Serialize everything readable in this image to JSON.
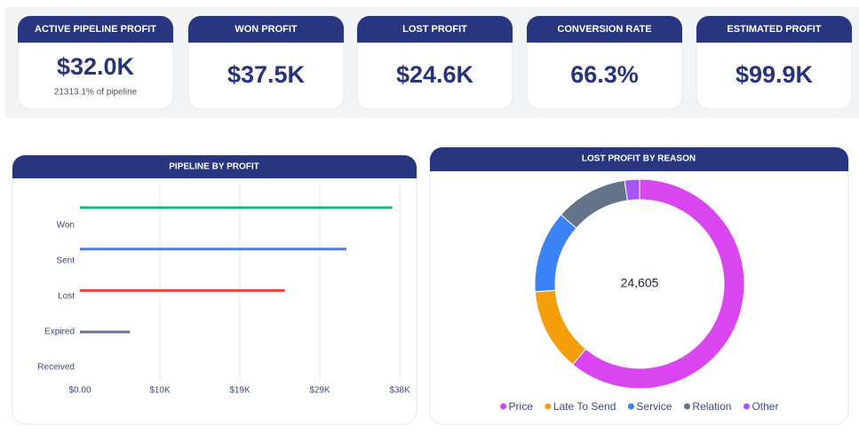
{
  "kpis": [
    {
      "title": "ACTIVE PIPELINE PROFIT",
      "value": "$32.0K",
      "note": "21313.1% of pipeline"
    },
    {
      "title": "WON PROFIT",
      "value": "$37.5K"
    },
    {
      "title": "LOST PROFIT",
      "value": "$24.6K"
    },
    {
      "title": "CONVERSION RATE",
      "value": "66.3%"
    },
    {
      "title": "ESTIMATED PROFIT",
      "value": "$99.9K"
    }
  ],
  "chart_data": [
    {
      "type": "bar",
      "orientation": "horizontal",
      "title": "PIPELINE BY PROFIT",
      "categories": [
        "Won",
        "Sent",
        "Lost",
        "Expired",
        "Received"
      ],
      "values": [
        37500,
        32000,
        24605,
        6000,
        0
      ],
      "colors": [
        "#10b981",
        "#3b82f6",
        "#ef4444",
        "#64748b",
        null
      ],
      "xlim": [
        0,
        38400
      ],
      "xticks": [
        {
          "value": 0,
          "label": "$0.00"
        },
        {
          "value": 9600,
          "label": "$10K"
        },
        {
          "value": 19200,
          "label": "$19K"
        },
        {
          "value": 28800,
          "label": "$29K"
        },
        {
          "value": 38400,
          "label": "$38K"
        }
      ],
      "grid": true
    },
    {
      "type": "pie",
      "donut": true,
      "title": "LOST PROFIT BY REASON",
      "center_label": "24,605",
      "categories": [
        "Price",
        "Late To Send",
        "Service",
        "Relation",
        "Other"
      ],
      "values": [
        15010,
        3150,
        3125,
        2755,
        565
      ],
      "colors": [
        "#d946ef",
        "#f59e0b",
        "#3b82f6",
        "#64748b",
        "#a855f7"
      ],
      "legend": "bottom"
    }
  ]
}
